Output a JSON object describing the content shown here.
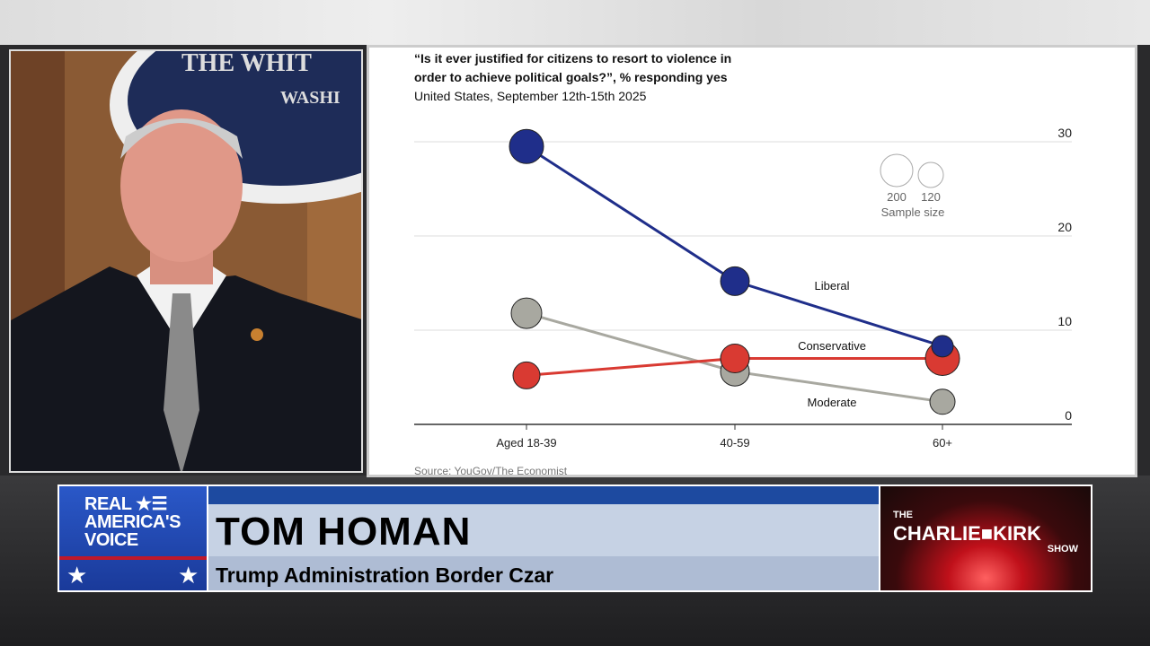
{
  "chart_data": {
    "type": "line",
    "title": "“Is it ever justified for citizens to resort to violence in order to achieve political goals?”, % responding yes",
    "title_lines": [
      "“Is it ever justified for citizens to resort to violence in",
      "order to achieve political goals?”, % responding yes"
    ],
    "subtitle": "United States, September 12th-15th 2025",
    "categories": [
      "Aged 18-39",
      "40-59",
      "60+"
    ],
    "ylim": [
      0,
      30
    ],
    "yticks": [
      "0",
      "10",
      "20",
      "30"
    ],
    "grid": true,
    "series": [
      {
        "name": "Liberal",
        "color": "#1f2e8a",
        "values": [
          29.5,
          15.2,
          8.3
        ]
      },
      {
        "name": "Conservative",
        "color": "#d93a32",
        "values": [
          5.2,
          7.0,
          7.0
        ]
      },
      {
        "name": "Moderate",
        "color": "#a8a8a0",
        "values": [
          11.8,
          5.6,
          2.4
        ]
      }
    ],
    "size_legend": {
      "values": [
        "200",
        "120"
      ],
      "label": "Sample size"
    },
    "source": "Source: YouGov/The Economist"
  },
  "lower_third": {
    "network_logo": [
      "REAL",
      "AMERICA'S",
      "VOICE"
    ],
    "name": "TOM HOMAN",
    "title": "Trump Administration Border Czar",
    "show_logo": {
      "the": "THE",
      "main": "CHARLIE■KIRK",
      "show": "SHOW"
    }
  },
  "background_sign": [
    "THE WHIT",
    "WASHI"
  ]
}
